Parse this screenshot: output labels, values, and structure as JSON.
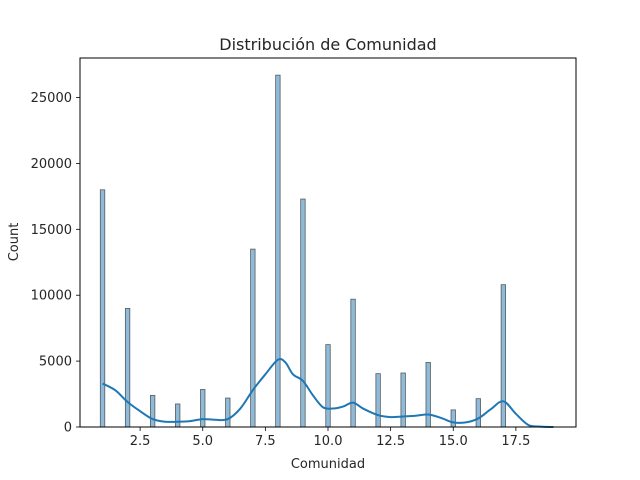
{
  "chart_data": {
    "type": "bar",
    "subtype": "histogram-with-kde",
    "title": "Distribución de Comunidad",
    "xlabel": "Comunidad",
    "ylabel": "Count",
    "xlim": [
      0.1,
      19.9
    ],
    "ylim": [
      0,
      28000
    ],
    "xticks": [
      2.5,
      5.0,
      7.5,
      10.0,
      12.5,
      15.0,
      17.5
    ],
    "xtick_labels": [
      "2.5",
      "5.0",
      "7.5",
      "10.0",
      "12.5",
      "15.0",
      "17.5"
    ],
    "yticks": [
      0,
      5000,
      10000,
      15000,
      20000,
      25000
    ],
    "ytick_labels": [
      "0",
      "5000",
      "10000",
      "15000",
      "20000",
      "25000"
    ],
    "bin_width": 0.18,
    "bars": [
      {
        "x": 1,
        "count": 18000
      },
      {
        "x": 2,
        "count": 9000
      },
      {
        "x": 3,
        "count": 2400
      },
      {
        "x": 4,
        "count": 1750
      },
      {
        "x": 5,
        "count": 2850
      },
      {
        "x": 6,
        "count": 2200
      },
      {
        "x": 7,
        "count": 13500
      },
      {
        "x": 8,
        "count": 26700
      },
      {
        "x": 9,
        "count": 17300
      },
      {
        "x": 10,
        "count": 6250
      },
      {
        "x": 11,
        "count": 9700
      },
      {
        "x": 12,
        "count": 4050
      },
      {
        "x": 13,
        "count": 4100
      },
      {
        "x": 14,
        "count": 4900
      },
      {
        "x": 15,
        "count": 1300
      },
      {
        "x": 16,
        "count": 2150
      },
      {
        "x": 17,
        "count": 10800
      }
    ],
    "kde": {
      "x": [
        1.0,
        1.5,
        2.0,
        2.5,
        3.0,
        3.5,
        4.0,
        4.5,
        5.0,
        5.5,
        6.0,
        6.5,
        7.0,
        7.5,
        8.0,
        8.3,
        8.6,
        9.0,
        9.4,
        9.8,
        10.2,
        10.6,
        11.0,
        11.4,
        12.0,
        12.5,
        13.0,
        13.5,
        14.0,
        14.5,
        15.0,
        15.5,
        16.0,
        16.5,
        17.0,
        17.5,
        18.0,
        18.5,
        19.0
      ],
      "y": [
        3300,
        2800,
        1900,
        1200,
        600,
        400,
        400,
        450,
        600,
        550,
        600,
        1400,
        2800,
        4000,
        5100,
        4900,
        4000,
        3500,
        2400,
        1500,
        1400,
        1550,
        1850,
        1400,
        900,
        750,
        800,
        850,
        950,
        700,
        350,
        350,
        650,
        1350,
        1950,
        1000,
        150,
        30,
        0
      ]
    },
    "bar_color": "#1f77b4",
    "line_color": "#1f77b4",
    "grid": false,
    "legend": "none"
  }
}
